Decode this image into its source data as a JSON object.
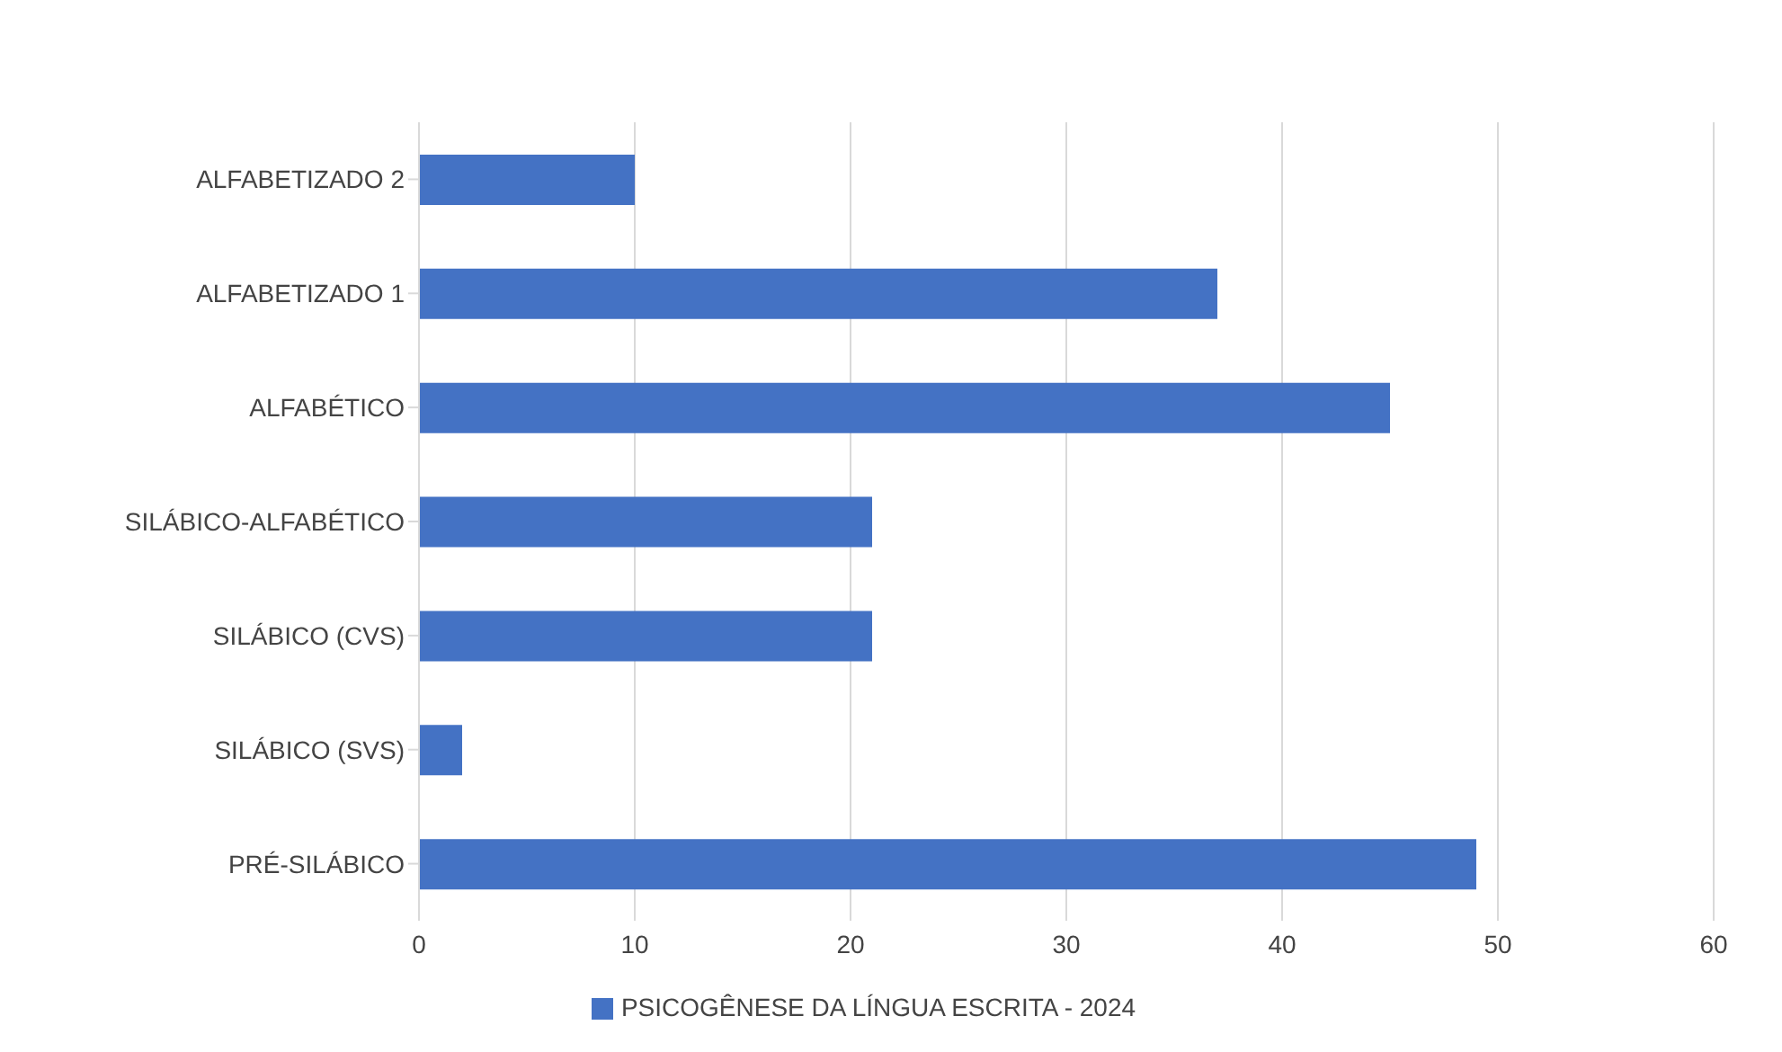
{
  "chart_data": {
    "type": "bar",
    "orientation": "horizontal",
    "categories": [
      "ALFABETIZADO 2",
      "ALFABETIZADO 1",
      "ALFABÉTICO",
      "SILÁBICO-ALFABÉTICO",
      "SILÁBICO (CVS)",
      "SILÁBICO (SVS)",
      "PRÉ-SILÁBICO"
    ],
    "series": [
      {
        "name": "PSICOGÊNESE DA LÍNGUA ESCRITA - 2024",
        "color": "#4472c4",
        "values": [
          10,
          37,
          45,
          21,
          21,
          2,
          49
        ]
      }
    ],
    "xlim": [
      0,
      60
    ],
    "xticks": [
      0,
      10,
      20,
      30,
      40,
      50,
      60
    ],
    "grid": "x",
    "legend": "bottom"
  }
}
